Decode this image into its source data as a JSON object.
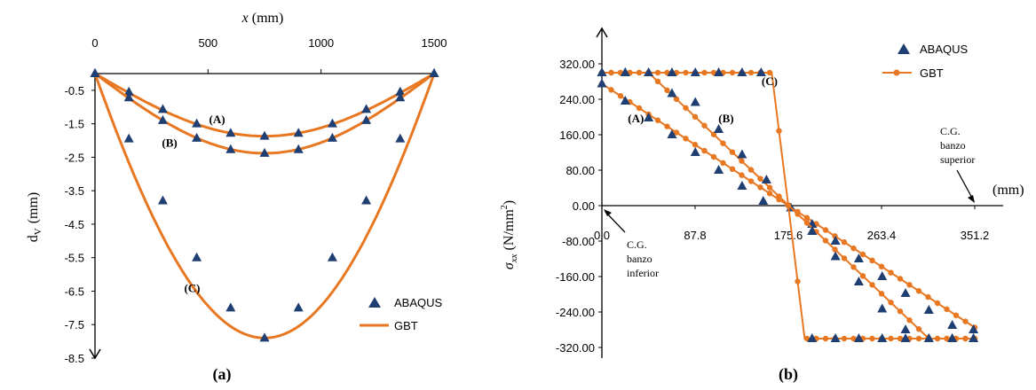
{
  "colors": {
    "gbt": "#E87722",
    "abaqus": "#1F3F73",
    "axis": "#000000"
  },
  "chart_data": [
    {
      "type": "line",
      "panel_label": "(a)",
      "xlabel_var": "x",
      "xlabel_unit": "(mm)",
      "ylabel_main": "d",
      "ylabel_sub": "V",
      "ylabel_unit": "(mm)",
      "xlim": [
        0,
        1500
      ],
      "ylim": [
        -8.5,
        0
      ],
      "x_ticks": [
        "0",
        "500",
        "1000",
        "1500"
      ],
      "x_tick_values": [
        0,
        500,
        1000,
        1500
      ],
      "y_ticks": [
        "-0.5",
        "-1.5",
        "-2.5",
        "-3.5",
        "-4.5",
        "-5.5",
        "-6.5",
        "-7.5",
        "-8.5"
      ],
      "y_tick_values": [
        -0.5,
        -1.5,
        -2.5,
        -3.5,
        -4.5,
        -5.5,
        -6.5,
        -7.5,
        -8.5
      ],
      "legend": {
        "abaqus": "ABAQUS",
        "gbt": "GBT",
        "position": "bottom-right"
      },
      "annotations": [
        {
          "text": "(A)",
          "x": 540,
          "y": -1.35
        },
        {
          "text": "(B)",
          "x": 330,
          "y": -2.05
        },
        {
          "text": "(C)",
          "x": 430,
          "y": -6.4
        }
      ],
      "series": [
        {
          "label": "A",
          "x": [
            0,
            150,
            300,
            450,
            600,
            750,
            900,
            1050,
            1200,
            1350,
            1500
          ],
          "abaqus": [
            0,
            -0.55,
            -1.07,
            -1.5,
            -1.78,
            -1.87,
            -1.78,
            -1.5,
            -1.07,
            -0.55,
            0
          ],
          "gbt_peak": -1.87
        },
        {
          "label": "B",
          "x": [
            0,
            150,
            300,
            450,
            600,
            750,
            900,
            1050,
            1200,
            1350,
            1500
          ],
          "abaqus": [
            0,
            -0.72,
            -1.4,
            -1.93,
            -2.27,
            -2.38,
            -2.27,
            -1.93,
            -1.4,
            -0.72,
            0
          ],
          "gbt_peak": -2.38
        },
        {
          "label": "C",
          "x": [
            0,
            150,
            300,
            450,
            600,
            750,
            900,
            1050,
            1200,
            1350,
            1500
          ],
          "abaqus": [
            0,
            -1.95,
            -3.8,
            -5.5,
            -7.0,
            -7.9,
            -7.0,
            -5.5,
            -3.8,
            -1.95,
            0
          ],
          "gbt_peak": -7.9
        }
      ]
    },
    {
      "type": "line",
      "panel_label": "(b)",
      "ylabel_var": "σ",
      "ylabel_sub": "xx",
      "ylabel_unit": "(N/mm",
      "ylabel_sup": "2",
      "ylabel_close": ")",
      "xlabel_unit": "(mm)",
      "xlim": [
        0,
        351.2
      ],
      "ylim": [
        -320,
        320
      ],
      "x_ticks": [
        "0.0",
        "87.8",
        "175.6",
        "263.4",
        "351.2"
      ],
      "x_tick_values": [
        0,
        87.8,
        175.6,
        263.4,
        351.2
      ],
      "y_ticks": [
        "320.00",
        "240.00",
        "160.00",
        "80.00",
        "0.00",
        "-80.00",
        "-160.00",
        "-240.00",
        "-320.00"
      ],
      "y_tick_values": [
        320,
        240,
        160,
        80,
        0,
        -80,
        -160,
        -240,
        -320
      ],
      "legend": {
        "abaqus": "ABAQUS",
        "gbt": "GBT",
        "position": "top-right"
      },
      "annotations": [
        {
          "text": "(A)",
          "x": 32,
          "y": 198
        },
        {
          "text": "(B)",
          "x": 117,
          "y": 198
        },
        {
          "text": "(C)",
          "x": 158,
          "y": 282
        }
      ],
      "callouts": {
        "inferior": [
          "C.G.",
          "banzo",
          "inferior"
        ],
        "superior": [
          "C.G.",
          "banzo",
          "superior"
        ]
      },
      "series": [
        {
          "label": "A",
          "gbt_x": [
            0,
            351.2
          ],
          "gbt_y": [
            275,
            -275
          ],
          "abaqus_x": [
            0,
            22,
            44,
            66,
            88,
            110,
            132,
            152,
            178,
            198,
            220,
            242,
            264,
            286,
            308,
            330,
            350
          ],
          "abaqus_y": [
            275,
            236,
            198,
            160,
            120,
            80,
            44,
            10,
            -5,
            -42,
            -80,
            -120,
            -160,
            -198,
            -236,
            -270,
            -280
          ]
        },
        {
          "label": "B",
          "gbt_x": [
            0,
            44,
            176,
            308,
            351.2
          ],
          "gbt_y": [
            300,
            300,
            0,
            -300,
            -300
          ],
          "abaqus_x": [
            0,
            22,
            44,
            66,
            88,
            110,
            132,
            155,
            198,
            220,
            242,
            264,
            286,
            308,
            330,
            350
          ],
          "abaqus_y": [
            300,
            300,
            300,
            253,
            233,
            172,
            115,
            58,
            -58,
            -115,
            -172,
            -233,
            -280,
            -300,
            -300,
            -300
          ]
        },
        {
          "label": "C",
          "gbt_x": [
            0,
            160,
            175.6,
            191,
            351.2
          ],
          "gbt_y": [
            300,
            300,
            0,
            -300,
            -300
          ],
          "abaqus_x": [
            0,
            22,
            44,
            66,
            88,
            110,
            132,
            150,
            198,
            220,
            242,
            264,
            286,
            308,
            330,
            350
          ],
          "abaqus_y": [
            300,
            300,
            300,
            300,
            300,
            300,
            300,
            300,
            -300,
            -300,
            -300,
            -300,
            -300,
            -300,
            -300,
            -300
          ]
        }
      ]
    }
  ]
}
